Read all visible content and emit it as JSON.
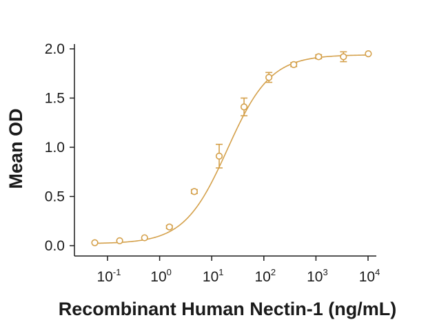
{
  "chart_data": {
    "type": "scatter",
    "xscale": "log",
    "xlabel": "Recombinant Human Nectin-1 (ng/mL)",
    "ylabel": "Mean OD",
    "ylim": [
      0,
      2.0
    ],
    "xlim": [
      0.04,
      12000
    ],
    "y_ticks": [
      "0.0",
      "0.5",
      "1.0",
      "1.5",
      "2.0"
    ],
    "x_ticks": [
      {
        "base": "10",
        "exp": "-1"
      },
      {
        "base": "10",
        "exp": "0"
      },
      {
        "base": "10",
        "exp": "1"
      },
      {
        "base": "10",
        "exp": "2"
      },
      {
        "base": "10",
        "exp": "3"
      },
      {
        "base": "10",
        "exp": "4"
      }
    ],
    "color": "#d4a04a",
    "grid": false,
    "fit": {
      "type": "4PL",
      "bottom": 0.02,
      "top": 1.94,
      "ec50": 20,
      "hill": 1.05
    },
    "series": [
      {
        "points": [
          {
            "x": 0.057,
            "y": 0.03,
            "err": 0.01
          },
          {
            "x": 0.171,
            "y": 0.05,
            "err": 0.01
          },
          {
            "x": 0.514,
            "y": 0.08,
            "err": 0.01
          },
          {
            "x": 1.54,
            "y": 0.19,
            "err": 0.015
          },
          {
            "x": 4.63,
            "y": 0.55,
            "err": 0.02
          },
          {
            "x": 13.9,
            "y": 0.91,
            "err": 0.12
          },
          {
            "x": 41.7,
            "y": 1.41,
            "err": 0.09
          },
          {
            "x": 125,
            "y": 1.71,
            "err": 0.05
          },
          {
            "x": 375,
            "y": 1.84,
            "err": 0.02
          },
          {
            "x": 1125,
            "y": 1.92,
            "err": 0.02
          },
          {
            "x": 3375,
            "y": 1.92,
            "err": 0.05
          },
          {
            "x": 10125,
            "y": 1.95,
            "err": 0.005
          }
        ]
      }
    ]
  }
}
